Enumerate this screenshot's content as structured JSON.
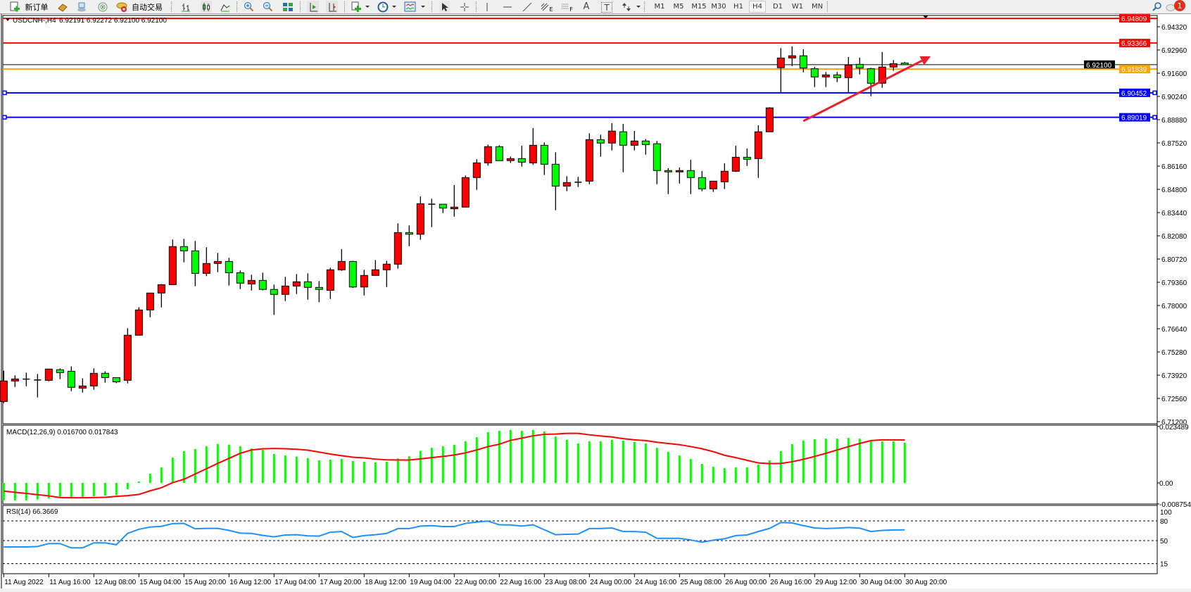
{
  "toolbar": {
    "new_order_label": "新订单",
    "auto_trading_label": "自动交易",
    "icons": [
      "new-order-icon",
      "gold-bars-icon",
      "cloud-icon",
      "signal-icon",
      "auto-trading-icon",
      "bar-chart-icon",
      "candlestick-icon",
      "line-chart-icon",
      "zoom-in-icon",
      "zoom-out-icon",
      "tile-windows-icon",
      "autoscroll-icon",
      "chart-shift-icon",
      "indicators-icon",
      "periods-clock-icon",
      "templates-icon",
      "cursor-icon",
      "crosshair-icon",
      "vertical-line-icon",
      "horizontal-line-icon",
      "trendline-icon",
      "equidistant-channel-icon",
      "fibonacci-icon",
      "text-icon",
      "text-label-icon",
      "arrows-icon",
      "search-icon",
      "notifications-icon"
    ],
    "fibo_e_label": "E",
    "fibo_f_label": "F",
    "text_tool_label": "A",
    "text_label_tool_label": "T",
    "timeframes": [
      "M1",
      "M5",
      "M15",
      "M30",
      "H1",
      "H4",
      "D1",
      "W1",
      "MN"
    ],
    "active_timeframe": "H4",
    "notification_count": "1"
  },
  "chart_data": [
    {
      "type": "candlestick",
      "header": {
        "symbol": "USDCNH-,H4",
        "ohlc": "6.92191 6.92272 6.92100 6.92100"
      },
      "up_color": "#ff0000",
      "down_color": "#00ff00",
      "ylim": [
        6.7108,
        6.9498
      ],
      "grid": false,
      "y_ticks": [
        "6.94320",
        "6.92960",
        "6.91600",
        "6.90240",
        "6.88880",
        "6.87520",
        "6.86160",
        "6.84800",
        "6.83440",
        "6.82080",
        "6.80720",
        "6.79360",
        "6.78000",
        "6.76640",
        "6.75280",
        "6.73920",
        "6.72560",
        "6.71200"
      ],
      "x_ticks": [
        "11 Aug 2022",
        "11 Aug 16:00",
        "12 Aug 08:00",
        "15 Aug 04:00",
        "15 Aug 20:00",
        "16 Aug 12:00",
        "17 Aug 04:00",
        "17 Aug 20:00",
        "18 Aug 12:00",
        "19 Aug 04:00",
        "22 Aug 00:00",
        "22 Aug 16:00",
        "23 Aug 08:00",
        "24 Aug 00:00",
        "24 Aug 16:00",
        "25 Aug 08:00",
        "26 Aug 00:00",
        "26 Aug 16:00",
        "29 Aug 12:00",
        "30 Aug 04:00",
        "30 Aug 20:00"
      ],
      "x_tick_every_bars": 4,
      "ohlc": [
        [
          6.7238,
          6.7418,
          6.7229,
          6.7358
        ],
        [
          6.7358,
          6.7391,
          6.7323,
          6.737
        ],
        [
          6.7369,
          6.7407,
          6.7327,
          6.7369
        ],
        [
          6.7364,
          6.7399,
          6.7262,
          6.7364
        ],
        [
          6.7362,
          6.7428,
          6.7356,
          6.7428
        ],
        [
          6.7424,
          6.7432,
          6.7369,
          6.7407
        ],
        [
          6.7415,
          6.7444,
          6.7299,
          6.7321
        ],
        [
          6.7316,
          6.7374,
          6.729,
          6.7329
        ],
        [
          6.7329,
          6.7432,
          6.7307,
          6.7403
        ],
        [
          6.7403,
          6.7415,
          6.7348,
          6.7378
        ],
        [
          6.7378,
          6.7378,
          6.7345,
          6.7353
        ],
        [
          6.7362,
          6.7667,
          6.7344,
          6.7626
        ],
        [
          6.7626,
          6.779,
          6.7626,
          6.7774
        ],
        [
          6.7774,
          6.7873,
          6.7731,
          6.7873
        ],
        [
          6.7873,
          6.7926,
          6.7789,
          6.7922
        ],
        [
          6.7922,
          6.8186,
          6.7922,
          6.8145
        ],
        [
          6.8145,
          6.819,
          6.8053,
          6.812
        ],
        [
          6.812,
          6.8178,
          6.7913,
          6.7988
        ],
        [
          6.7988,
          6.8141,
          6.7972,
          6.8046
        ],
        [
          6.8046,
          6.8108,
          6.7995,
          6.8058
        ],
        [
          6.8058,
          6.8079,
          6.7917,
          6.7992
        ],
        [
          6.7992,
          6.8005,
          6.7896,
          6.7931
        ],
        [
          6.7926,
          6.798,
          6.7888,
          6.7947
        ],
        [
          6.7947,
          6.7992,
          6.7888,
          6.7894
        ],
        [
          6.7894,
          6.7922,
          6.7745,
          6.7865
        ],
        [
          6.7865,
          6.7968,
          6.7826,
          6.7914
        ],
        [
          6.7914,
          6.7984,
          6.7867,
          6.7939
        ],
        [
          6.7939,
          6.7988,
          6.7834,
          6.7906
        ],
        [
          6.7906,
          6.7943,
          6.7819,
          6.7894
        ],
        [
          6.7889,
          6.8021,
          6.7838,
          6.8009
        ],
        [
          6.8009,
          6.813,
          6.8003,
          6.8058
        ],
        [
          6.8058,
          6.8062,
          6.7903,
          6.7908
        ],
        [
          6.7908,
          6.8009,
          6.7859,
          6.7976
        ],
        [
          6.7976,
          6.8066,
          6.7976,
          6.8009
        ],
        [
          6.8009,
          6.8062,
          6.7908,
          6.8042
        ],
        [
          6.8042,
          6.8281,
          6.8016,
          6.8227
        ],
        [
          6.8227,
          6.8269,
          6.8147,
          6.8217
        ],
        [
          6.8217,
          6.8438,
          6.8185,
          6.8396
        ],
        [
          6.8393,
          6.8425,
          6.8259,
          6.8393
        ],
        [
          6.8393,
          6.8393,
          6.8341,
          6.837
        ],
        [
          6.8366,
          6.8505,
          6.832,
          6.8376
        ],
        [
          6.8376,
          6.8561,
          6.8376,
          6.8549
        ],
        [
          6.8549,
          6.8656,
          6.8477,
          6.8635
        ],
        [
          6.8635,
          6.8742,
          6.8619,
          6.873
        ],
        [
          6.873,
          6.8738,
          6.8648,
          6.8648
        ],
        [
          6.8648,
          6.8672,
          6.8635,
          6.866
        ],
        [
          6.866,
          6.8735,
          6.8613,
          6.8639
        ],
        [
          6.8635,
          6.8839,
          6.8623,
          6.8738
        ],
        [
          6.8738,
          6.8755,
          6.8564,
          6.8627
        ],
        [
          6.8627,
          6.8697,
          6.8358,
          6.8499
        ],
        [
          6.8499,
          6.8557,
          6.8469,
          6.852
        ],
        [
          6.8522,
          6.8553,
          6.8494,
          6.8522
        ],
        [
          6.8528,
          6.8808,
          6.851,
          6.8771
        ],
        [
          6.8771,
          6.88,
          6.8671,
          6.8751
        ],
        [
          6.8751,
          6.8867,
          6.8708,
          6.8821
        ],
        [
          6.8817,
          6.8863,
          6.858,
          6.8738
        ],
        [
          6.8738,
          6.8822,
          6.8708,
          6.8763
        ],
        [
          6.8763,
          6.8775,
          6.8683,
          6.8742
        ],
        [
          6.8747,
          6.8763,
          6.851,
          6.859
        ],
        [
          6.859,
          6.8604,
          6.8452,
          6.8582
        ],
        [
          6.8582,
          6.8608,
          6.8514,
          6.859
        ],
        [
          6.859,
          6.8653,
          6.8452,
          6.8549
        ],
        [
          6.8549,
          6.8587,
          6.8469,
          6.8483
        ],
        [
          6.8483,
          6.8528,
          6.8465,
          6.8528
        ],
        [
          6.8524,
          6.8632,
          6.8482,
          6.8586
        ],
        [
          6.8586,
          6.8735,
          6.8582,
          6.8668
        ],
        [
          6.8668,
          6.8719,
          6.8617,
          6.8656
        ],
        [
          6.866,
          6.8855,
          6.8547,
          6.8817
        ],
        [
          6.8817,
          6.8961,
          6.8817,
          6.8957
        ],
        [
          6.9192,
          6.9307,
          6.9049,
          6.9249
        ],
        [
          6.9249,
          6.9317,
          6.9202,
          6.9262
        ],
        [
          6.9262,
          6.93,
          6.9165,
          6.919
        ],
        [
          6.9186,
          6.9197,
          6.9079,
          6.9138
        ],
        [
          6.9138,
          6.9167,
          6.9079,
          6.915
        ],
        [
          6.915,
          6.9167,
          6.9108,
          6.9134
        ],
        [
          6.9134,
          6.9255,
          6.9049,
          6.9208
        ],
        [
          6.9212,
          6.9251,
          6.9153,
          6.919
        ],
        [
          6.9186,
          6.9192,
          6.9025,
          6.9101
        ],
        [
          6.9101,
          6.9284,
          6.9075,
          6.9196
        ],
        [
          6.9196,
          6.9237,
          6.9174,
          6.9216
        ],
        [
          6.92191,
          6.92272,
          6.921,
          6.921
        ]
      ],
      "horizontal_lines": [
        {
          "price": "6.94809",
          "color": "#ff0000"
        },
        {
          "price": "6.93366",
          "color": "#ff0000"
        },
        {
          "price": "6.92100",
          "color": "#000000"
        },
        {
          "price": "6.91839",
          "color": "#ffa500"
        },
        {
          "price": "6.90452",
          "color": "#0000ff"
        },
        {
          "price": "6.89019",
          "color": "#0000ff"
        }
      ],
      "annotation_arrow": {
        "color": "#e8202a",
        "from": {
          "bar": 71,
          "price": 6.888
        },
        "to": {
          "bar": 82.3,
          "price": 6.9259
        }
      }
    },
    {
      "type": "bar",
      "title": "MACD(12,26,9) 0.016700 0.017843",
      "ylim": [
        -0.008754,
        0.023489
      ],
      "y_ticks": [
        "0.023489",
        "0.00",
        "-0.008754"
      ],
      "histogram_color": "#00ff00",
      "signal_color": "#ff0000",
      "macd": [
        -0.0073,
        -0.0073,
        -0.0073,
        -0.0069,
        -0.0065,
        -0.0063,
        -0.0062,
        -0.0061,
        -0.0056,
        -0.0053,
        -0.005,
        -0.0026,
        0.0006,
        0.0038,
        0.0064,
        0.0105,
        0.0132,
        0.0141,
        0.0152,
        0.0162,
        0.0159,
        0.0152,
        0.0143,
        0.0138,
        0.012,
        0.0114,
        0.0109,
        0.0103,
        0.0094,
        0.0097,
        0.01,
        0.0091,
        0.0088,
        0.0085,
        0.0088,
        0.0102,
        0.0111,
        0.0133,
        0.0146,
        0.0152,
        0.0158,
        0.0173,
        0.019,
        0.0211,
        0.0217,
        0.022,
        0.0217,
        0.022,
        0.0214,
        0.0193,
        0.0179,
        0.0164,
        0.0173,
        0.0173,
        0.0179,
        0.0176,
        0.017,
        0.0164,
        0.0146,
        0.0129,
        0.0114,
        0.01,
        0.0079,
        0.0067,
        0.0061,
        0.0064,
        0.0064,
        0.0076,
        0.0094,
        0.0132,
        0.0161,
        0.0176,
        0.0182,
        0.0184,
        0.0184,
        0.0187,
        0.0184,
        0.0176,
        0.0173,
        0.0173,
        0.0167
      ],
      "signal": [
        -0.0034,
        -0.0039,
        -0.0044,
        -0.0049,
        -0.0054,
        -0.0061,
        -0.0062,
        -0.0062,
        -0.0061,
        -0.006,
        -0.0056,
        -0.0053,
        -0.0048,
        -0.0033,
        -0.002,
        0.0001,
        0.0015,
        0.0037,
        0.0059,
        0.0081,
        0.0102,
        0.0123,
        0.0137,
        0.0142,
        0.0143,
        0.0142,
        0.014,
        0.0136,
        0.0128,
        0.012,
        0.0113,
        0.0107,
        0.0104,
        0.0099,
        0.0096,
        0.0095,
        0.0095,
        0.01,
        0.0105,
        0.011,
        0.0116,
        0.0125,
        0.0137,
        0.0151,
        0.0161,
        0.0177,
        0.0186,
        0.0196,
        0.0202,
        0.0203,
        0.0206,
        0.0206,
        0.02,
        0.0195,
        0.0191,
        0.0184,
        0.0179,
        0.0176,
        0.0169,
        0.0164,
        0.0159,
        0.0151,
        0.0142,
        0.013,
        0.0115,
        0.0105,
        0.0094,
        0.0083,
        0.008,
        0.0081,
        0.0088,
        0.0098,
        0.011,
        0.0123,
        0.0137,
        0.0151,
        0.0164,
        0.0176,
        0.0179,
        0.0179,
        0.017843
      ]
    },
    {
      "type": "line",
      "title": "RSI(14) 66.3669",
      "y_ticks": [
        "100",
        "80",
        "50",
        "15"
      ],
      "levels": [
        80,
        50,
        15
      ],
      "line_color": "#1e90ff",
      "values": [
        40.3,
        40.3,
        40.3,
        41,
        45.5,
        45.5,
        39,
        39,
        46.5,
        46.5,
        43.8,
        61,
        67.2,
        70.7,
        71.7,
        75.9,
        76.2,
        67.9,
        68.6,
        68.6,
        65.5,
        61.4,
        61,
        57.9,
        55.8,
        58.6,
        59,
        57.2,
        56.9,
        62.8,
        63.8,
        54.8,
        57.6,
        59,
        61,
        68.3,
        68.3,
        72.1,
        72.8,
        71.4,
        71.4,
        76.2,
        78.3,
        79.7,
        74.1,
        73.8,
        72.1,
        74.1,
        66.5,
        59,
        59.6,
        60,
        68.3,
        68.3,
        69.3,
        63.8,
        63.8,
        62.8,
        53.5,
        53.5,
        53.5,
        51,
        47.6,
        50.7,
        52.8,
        57.6,
        58.6,
        63.8,
        68.6,
        77.6,
        76.9,
        72.8,
        69.3,
        68.3,
        69,
        70,
        69,
        63.8,
        65.5,
        66.2,
        66.3669
      ]
    }
  ]
}
